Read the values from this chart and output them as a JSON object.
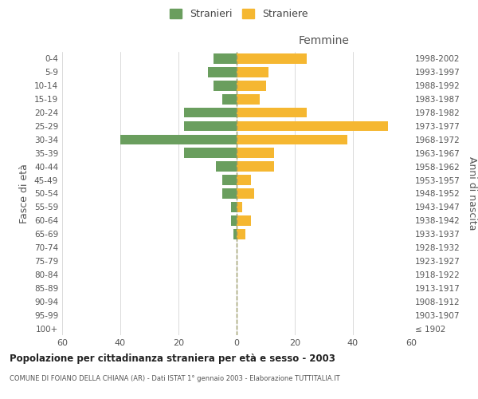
{
  "age_groups": [
    "100+",
    "95-99",
    "90-94",
    "85-89",
    "80-84",
    "75-79",
    "70-74",
    "65-69",
    "60-64",
    "55-59",
    "50-54",
    "45-49",
    "40-44",
    "35-39",
    "30-34",
    "25-29",
    "20-24",
    "15-19",
    "10-14",
    "5-9",
    "0-4"
  ],
  "birth_years": [
    "≤ 1902",
    "1903-1907",
    "1908-1912",
    "1913-1917",
    "1918-1922",
    "1923-1927",
    "1928-1932",
    "1933-1937",
    "1938-1942",
    "1943-1947",
    "1948-1952",
    "1953-1957",
    "1958-1962",
    "1963-1967",
    "1968-1972",
    "1973-1977",
    "1978-1982",
    "1983-1987",
    "1988-1992",
    "1993-1997",
    "1998-2002"
  ],
  "males": [
    0,
    0,
    0,
    0,
    0,
    0,
    0,
    1,
    2,
    2,
    5,
    5,
    7,
    18,
    40,
    18,
    18,
    5,
    8,
    10,
    8
  ],
  "females": [
    0,
    0,
    0,
    0,
    0,
    0,
    0,
    3,
    5,
    2,
    6,
    5,
    13,
    13,
    38,
    52,
    24,
    8,
    10,
    11,
    24
  ],
  "male_color": "#6a9e5e",
  "female_color": "#f5b731",
  "male_label": "Stranieri",
  "female_label": "Straniere",
  "title": "Popolazione per cittadinanza straniera per età e sesso - 2003",
  "subtitle": "COMUNE DI FOIANO DELLA CHIANA (AR) - Dati ISTAT 1° gennaio 2003 - Elaborazione TUTTITALIA.IT",
  "xlabel_right": "Femmine",
  "ylabel_left": "Fasce di età",
  "ylabel_right": "Anni di nascita",
  "xlim": 60,
  "background_color": "#ffffff",
  "grid_color": "#cccccc"
}
